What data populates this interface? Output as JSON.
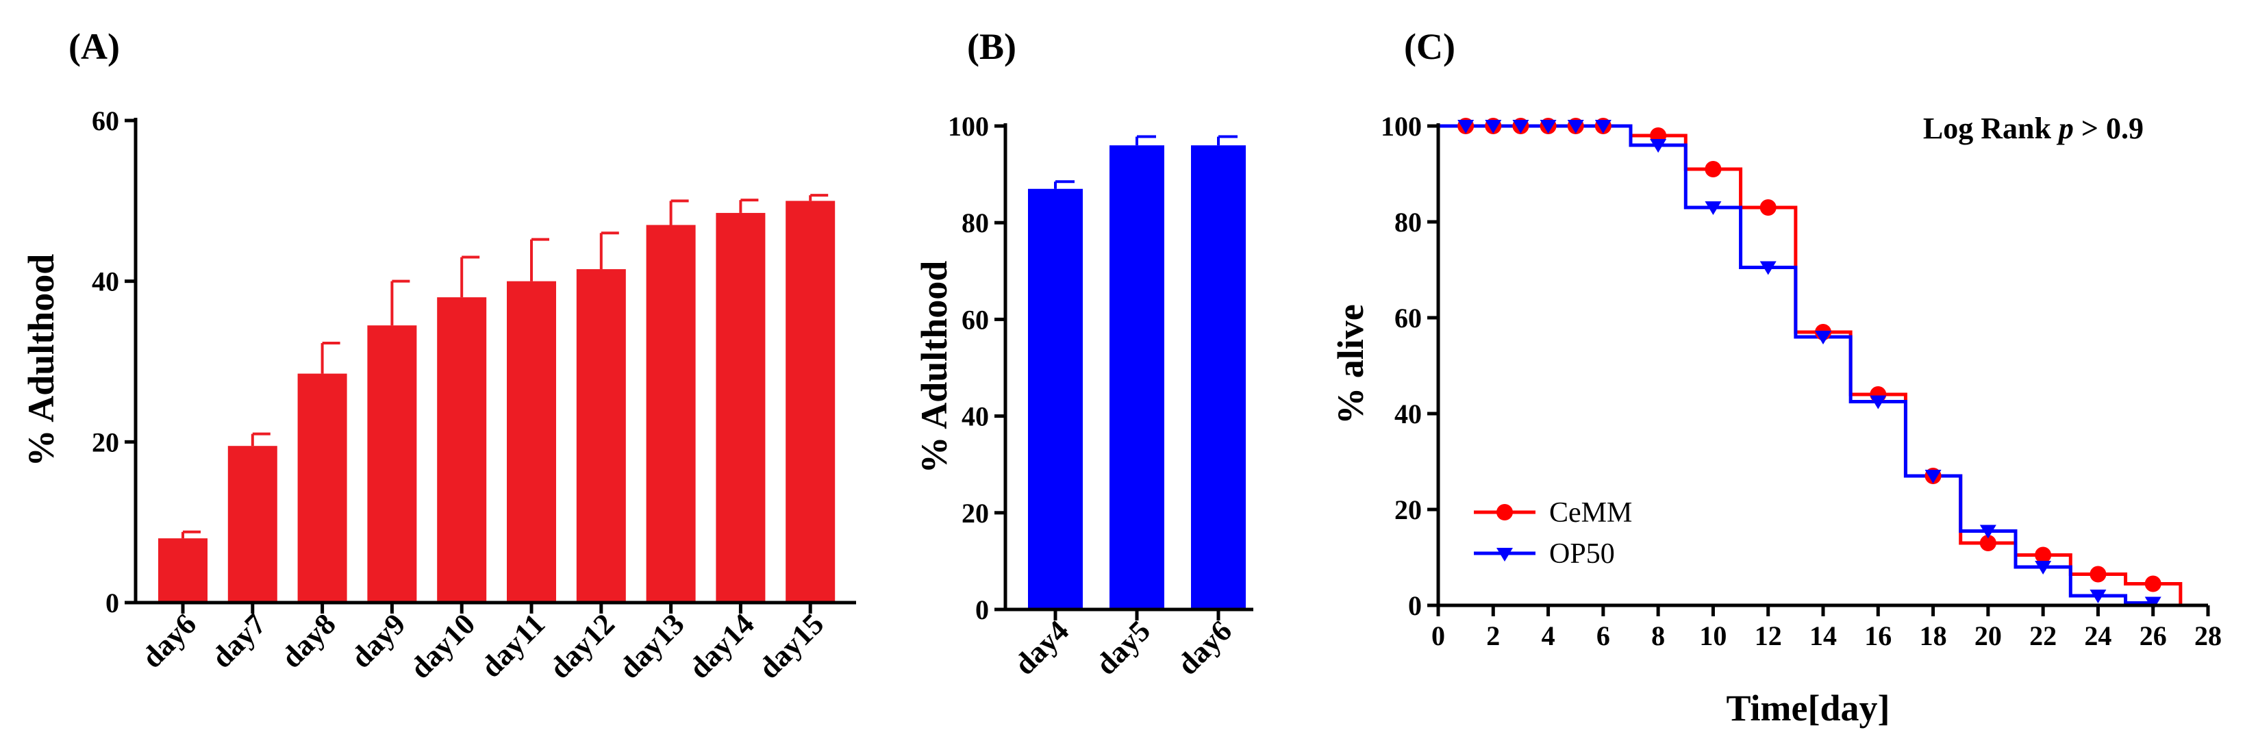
{
  "colors": {
    "panel_a_bars": "#ED1C24",
    "panel_b_bars": "#0000FF",
    "cemm": "#FF0000",
    "op50": "#0000FF"
  },
  "chart_data": [
    {
      "panel": "(A)",
      "type": "bar",
      "title": "",
      "xlabel": "",
      "ylabel": "% Adulthood",
      "ylim": [
        0,
        60
      ],
      "yticks": [
        0,
        20,
        40,
        60
      ],
      "categories": [
        "day6",
        "day7",
        "day8",
        "day9",
        "day10",
        "day11",
        "day12",
        "day13",
        "day14",
        "day15"
      ],
      "values": [
        8,
        19.5,
        28.5,
        34.5,
        38,
        40,
        41.5,
        47,
        48.5,
        50
      ],
      "errors": [
        0.8,
        1.5,
        3.8,
        5.5,
        5,
        5.2,
        4.5,
        3,
        1.6,
        0.7
      ]
    },
    {
      "panel": "(B)",
      "type": "bar",
      "title": "",
      "xlabel": "",
      "ylabel": "% Adulthood",
      "ylim": [
        0,
        100
      ],
      "yticks": [
        0,
        20,
        40,
        60,
        80,
        100
      ],
      "categories": [
        "day4",
        "day5",
        "day6"
      ],
      "values": [
        87,
        96,
        96
      ],
      "errors": [
        1.5,
        1.8,
        1.8
      ]
    },
    {
      "panel": "(C)",
      "type": "line",
      "subtype": "step survival curve",
      "title": "",
      "xlabel": "Time[day]",
      "ylabel": "% alive",
      "xlim": [
        0,
        28
      ],
      "ylim": [
        0,
        100
      ],
      "xticks": [
        0,
        2,
        4,
        6,
        8,
        10,
        12,
        14,
        16,
        18,
        20,
        22,
        24,
        26,
        28
      ],
      "yticks": [
        0,
        20,
        40,
        60,
        80,
        100
      ],
      "annotation_prefix": "Log Rank ",
      "annotation_italic": "p",
      "annotation_suffix": " > 0.9",
      "legend_position": "bottom-left",
      "series": [
        {
          "name": "CeMM",
          "marker": "circle",
          "step_x": [
            0,
            7,
            9,
            11,
            13,
            15,
            17,
            19,
            21,
            23,
            25,
            27,
            28
          ],
          "step_y": [
            100,
            98,
            91,
            83,
            57,
            44,
            27,
            13,
            10.5,
            6.5,
            4.5,
            0,
            0
          ],
          "marker_x": [
            1,
            2,
            3,
            4,
            5,
            6,
            8,
            10,
            12,
            14,
            16,
            18,
            20,
            22,
            24,
            26
          ],
          "marker_y": [
            100,
            100,
            100,
            100,
            100,
            100,
            98,
            91,
            83,
            57,
            44,
            27,
            13,
            10.5,
            6.5,
            4.5
          ]
        },
        {
          "name": "OP50",
          "marker": "triangle-down",
          "step_x": [
            0,
            7,
            9,
            11,
            13,
            15,
            17,
            19,
            21,
            23,
            25,
            26
          ],
          "step_y": [
            100,
            96,
            83,
            70.5,
            56,
            42.5,
            27,
            15.5,
            8,
            2,
            0.5,
            0.5
          ],
          "marker_x": [
            1,
            2,
            3,
            4,
            5,
            6,
            8,
            10,
            12,
            14,
            16,
            18,
            20,
            22,
            24,
            26
          ],
          "marker_y": [
            100,
            100,
            100,
            100,
            100,
            100,
            96,
            83,
            70.5,
            56,
            42.5,
            27,
            15.5,
            8,
            2,
            0.5
          ]
        }
      ]
    }
  ]
}
